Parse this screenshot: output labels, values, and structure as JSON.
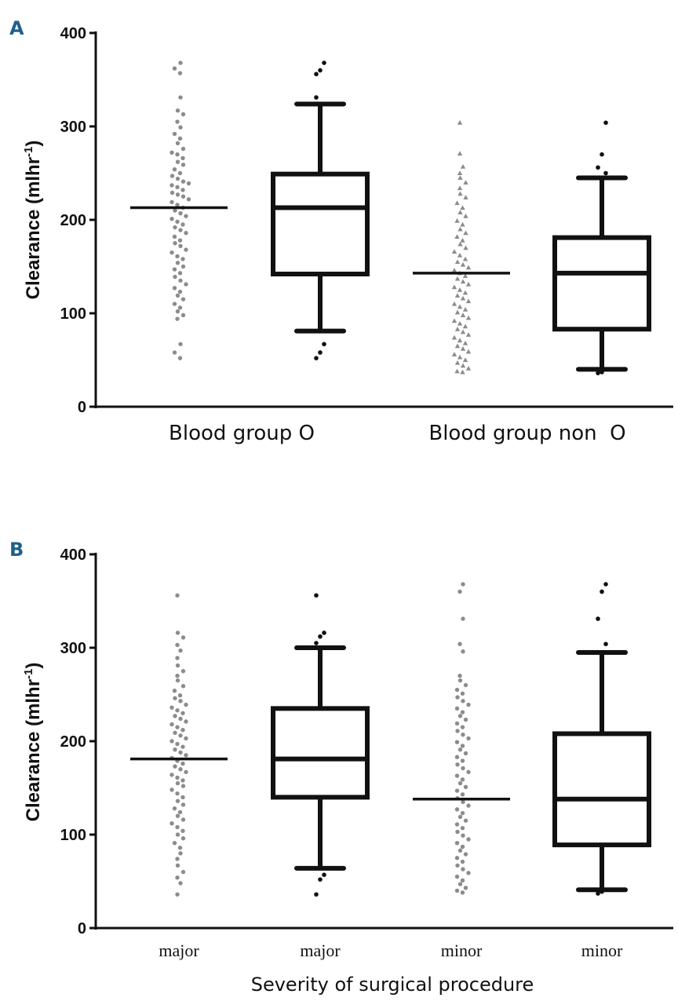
{
  "chart_data": [
    {
      "panel": "A",
      "type": "scatter-box",
      "ylabel": "Clearance (mlhr",
      "ylabel_sup": "-1",
      "ylabel_close": ")",
      "ylim": [
        0,
        400
      ],
      "yticks": [
        0,
        100,
        200,
        300,
        400
      ],
      "categories": [
        "Blood group O",
        "Blood group non  O"
      ],
      "xlabel": "",
      "groups": [
        {
          "name": "Blood group O",
          "marker": "circle",
          "scatter_median": 213,
          "box": {
            "whisker_low": 81,
            "q1": 142,
            "median": 213,
            "q3": 249,
            "whisker_high": 324
          },
          "outliers": [
            52,
            58,
            67,
            356,
            360,
            368,
            331
          ],
          "points": [
            368,
            362,
            357,
            331,
            317,
            313,
            305,
            299,
            292,
            287,
            282,
            276,
            272,
            270,
            266,
            262,
            259,
            254,
            250,
            247,
            244,
            241,
            239,
            237,
            235,
            232,
            229,
            227,
            225,
            222,
            219,
            216,
            213,
            210,
            207,
            204,
            201,
            198,
            195,
            192,
            189,
            186,
            182,
            178,
            175,
            172,
            168,
            165,
            161,
            158,
            154,
            150,
            147,
            143,
            139,
            135,
            131,
            127,
            123,
            119,
            115,
            110,
            106,
            102,
            98,
            94,
            67,
            58,
            52
          ]
        },
        {
          "name": "Blood group non  O",
          "marker": "triangle",
          "scatter_median": 143,
          "box": {
            "whisker_low": 40,
            "q1": 83,
            "median": 143,
            "q3": 181,
            "whisker_high": 245
          },
          "outliers": [
            36,
            37,
            250,
            256,
            270,
            304
          ],
          "points": [
            304,
            271,
            257,
            250,
            245,
            240,
            234,
            228,
            224,
            218,
            213,
            208,
            204,
            199,
            195,
            190,
            186,
            182,
            178,
            174,
            170,
            166,
            162,
            158,
            155,
            152,
            149,
            146,
            143,
            140,
            137,
            134,
            131,
            128,
            125,
            122,
            119,
            116,
            113,
            110,
            107,
            104,
            101,
            98,
            95,
            92,
            89,
            86,
            83,
            80,
            77,
            74,
            71,
            68,
            65,
            62,
            59,
            56,
            53,
            50,
            47,
            44,
            41,
            38,
            37
          ]
        }
      ]
    },
    {
      "panel": "B",
      "type": "scatter-box",
      "ylabel": "Clearance (mlhr",
      "ylabel_sup": "-1",
      "ylabel_close": ")",
      "ylim": [
        0,
        400
      ],
      "yticks": [
        0,
        100,
        200,
        300,
        400
      ],
      "categories": [
        "major",
        "major",
        "minor",
        "minor"
      ],
      "xlabel": "Severity of surgical procedure",
      "groups": [
        {
          "name": "major",
          "marker": "circle",
          "scatter_median": 181,
          "box": null,
          "points": [
            356,
            316,
            311,
            303,
            297,
            289,
            281,
            275,
            270,
            265,
            259,
            254,
            249,
            246,
            243,
            239,
            236,
            233,
            230,
            227,
            224,
            221,
            218,
            215,
            212,
            209,
            206,
            203,
            200,
            197,
            194,
            191,
            188,
            185,
            182,
            179,
            176,
            173,
            170,
            167,
            164,
            161,
            158,
            155,
            152,
            148,
            144,
            140,
            136,
            132,
            128,
            124,
            120,
            116,
            112,
            108,
            104,
            100,
            96,
            91,
            86,
            80,
            74,
            67,
            60,
            54,
            48,
            36
          ]
        },
        {
          "name": "major",
          "marker": "box",
          "box": {
            "whisker_low": 64,
            "q1": 140,
            "median": 181,
            "q3": 235,
            "whisker_high": 300
          },
          "outliers": [
            36,
            52,
            57,
            305,
            312,
            316,
            356
          ]
        },
        {
          "name": "minor",
          "marker": "circle",
          "scatter_median": 138,
          "box": null,
          "points": [
            368,
            360,
            331,
            304,
            296,
            270,
            265,
            260,
            255,
            251,
            247,
            243,
            239,
            235,
            231,
            227,
            223,
            219,
            215,
            211,
            207,
            203,
            199,
            195,
            191,
            187,
            183,
            179,
            175,
            171,
            167,
            163,
            159,
            155,
            151,
            147,
            143,
            139,
            135,
            131,
            127,
            123,
            119,
            115,
            111,
            107,
            103,
            99,
            95,
            91,
            87,
            83,
            79,
            75,
            71,
            67,
            63,
            59,
            55,
            51,
            47,
            43,
            40,
            38
          ]
        },
        {
          "name": "minor",
          "marker": "box",
          "box": {
            "whisker_low": 41,
            "q1": 89,
            "median": 138,
            "q3": 208,
            "whisker_high": 295
          },
          "outliers": [
            37,
            39,
            304,
            331,
            360,
            368
          ]
        }
      ]
    }
  ]
}
